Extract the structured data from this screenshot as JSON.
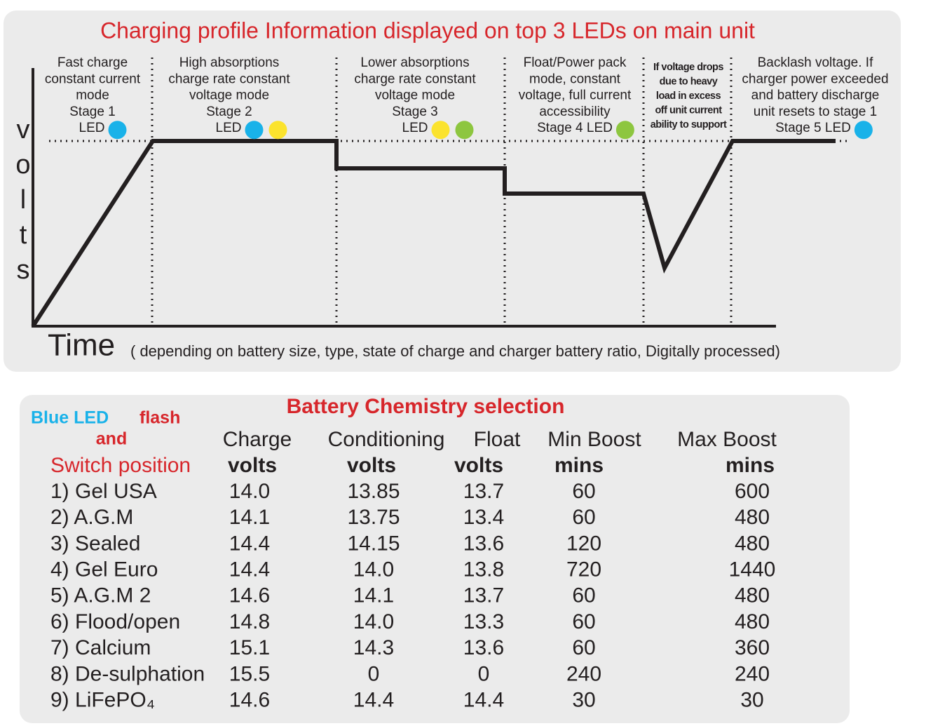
{
  "profile": {
    "title": "Charging profile Information displayed on top 3 LEDs on main unit",
    "y_axis_label": "volts",
    "x_axis_label": "Time",
    "x_axis_note": "( depending on battery size, type, state of charge and charger battery ratio, Digitally processed)",
    "stages": [
      {
        "lines": [
          "Fast charge",
          "constant current",
          "mode",
          "Stage 1"
        ],
        "led_label": "LED",
        "leds": [
          "#19b2e9"
        ]
      },
      {
        "lines": [
          "High absorptions",
          "charge rate constant",
          "voltage mode",
          "Stage 2"
        ],
        "led_label": "LED",
        "leds": [
          "#19b2e9",
          "#fbe32d"
        ]
      },
      {
        "lines": [
          "Lower absorptions",
          "charge rate constant",
          "voltage mode",
          "Stage 3"
        ],
        "led_label": "LED",
        "leds": [
          "#fbe32d",
          "#8dc63f"
        ]
      },
      {
        "lines": [
          "Float/Power pack",
          "mode, constant",
          "voltage, full current",
          "accessibility"
        ],
        "led_label": "Stage 4 LED",
        "leds": [
          "#8dc63f"
        ]
      },
      {
        "lines": [
          "If voltage drops",
          "due to heavy",
          "load  in excess",
          "off unit  current",
          "ability to support"
        ],
        "leds": []
      },
      {
        "lines": [
          "Backlash voltage. If",
          "charger power exceeded",
          "and battery discharge",
          "unit resets to stage 1"
        ],
        "led_label": "Stage 5 LED",
        "leds": [
          "#19b2e9"
        ]
      }
    ]
  },
  "table": {
    "title": "Battery Chemistry selection",
    "left_header": {
      "led": "Blue LED",
      "flash": "flash",
      "and": "and",
      "switch": "Switch position"
    },
    "columns": [
      [
        "Charge",
        "volts"
      ],
      [
        "Conditioning",
        "volts"
      ],
      [
        "Float",
        "volts"
      ],
      [
        "Min Boost",
        "mins"
      ],
      [
        "Max Boost",
        "mins"
      ]
    ],
    "rows": [
      [
        "1) Gel USA",
        "14.0",
        "13.85",
        "13.7",
        "60",
        "600"
      ],
      [
        "2) A.G.M",
        "14.1",
        "13.75",
        "13.4",
        "60",
        "480"
      ],
      [
        "3) Sealed",
        "14.4",
        "14.15",
        "13.6",
        "120",
        "480"
      ],
      [
        "4) Gel Euro",
        "14.4",
        "14.0",
        "13.8",
        "720",
        "1440"
      ],
      [
        "5) A.G.M 2",
        "14.6",
        "14.1",
        "13.7",
        "60",
        "480"
      ],
      [
        "6) Flood/open",
        "14.8",
        "14.0",
        "13.3",
        "60",
        "480"
      ],
      [
        "7) Calcium",
        "15.1",
        "14.3",
        "13.6",
        "60",
        "360"
      ],
      [
        "8) De-sulphation",
        "15.5",
        "0",
        "0",
        "240",
        "240"
      ],
      [
        "9) LiFePO₄",
        "14.6",
        "14.4",
        "14.4",
        "30",
        "30"
      ]
    ]
  }
}
